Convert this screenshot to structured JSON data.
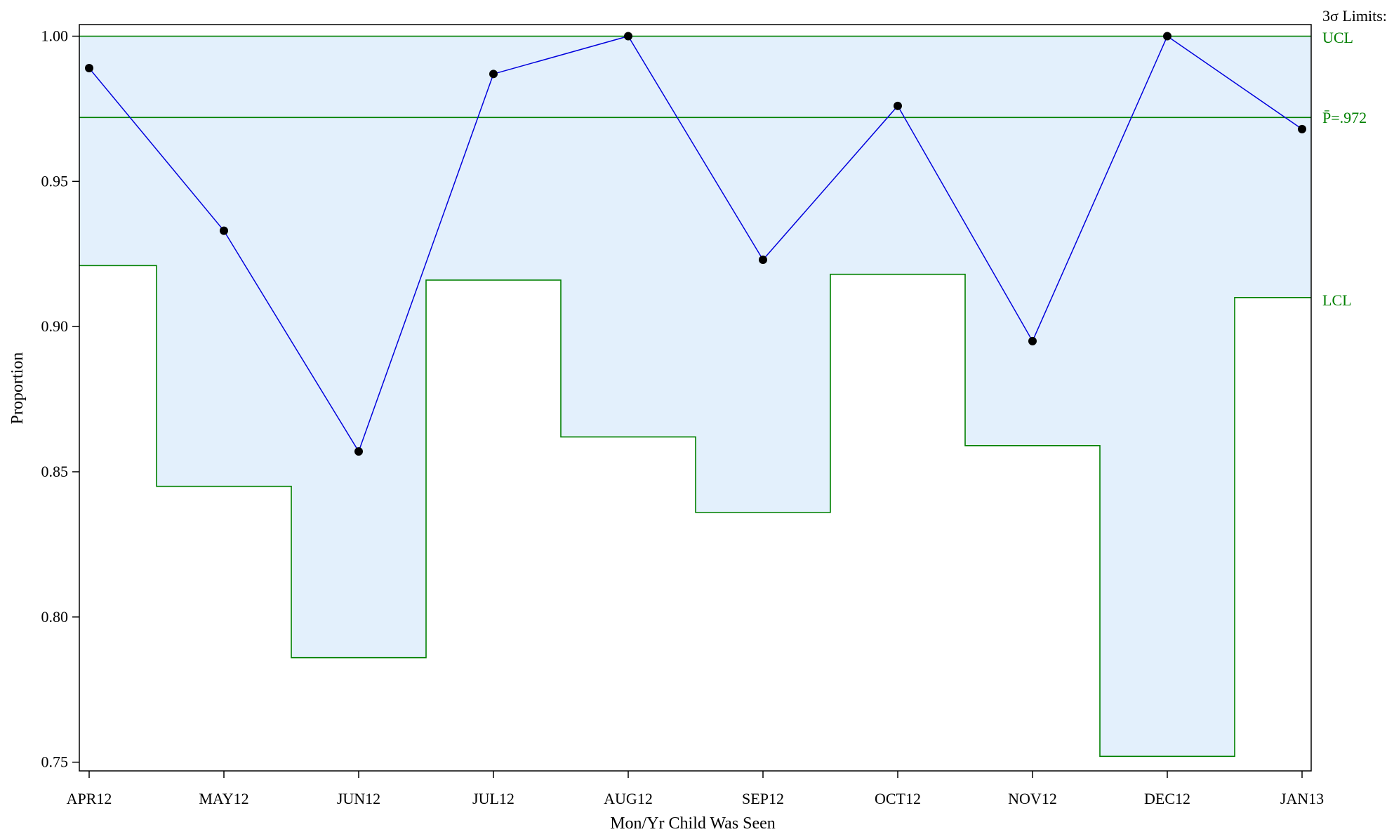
{
  "chart_data": {
    "type": "line",
    "chart_kind": "p-chart",
    "xlabel": "Mon/Yr Child Was Seen",
    "ylabel": "Proportion",
    "categories": [
      "APR12",
      "MAY12",
      "JUN12",
      "JUL12",
      "AUG12",
      "SEP12",
      "OCT12",
      "NOV12",
      "DEC12",
      "JAN13"
    ],
    "series": [
      {
        "values": [
          0.989,
          0.933,
          0.857,
          0.987,
          1.0,
          0.923,
          0.976,
          0.895,
          1.0,
          0.968
        ]
      }
    ],
    "center_line": 0.972,
    "ucl": [
      1.0,
      1.0,
      1.0,
      1.0,
      1.0,
      1.0,
      1.0,
      1.0,
      1.0,
      1.0
    ],
    "lcl": [
      0.921,
      0.845,
      0.786,
      0.916,
      0.862,
      0.836,
      0.918,
      0.859,
      0.752,
      0.91
    ],
    "ylim": [
      0.747,
      1.004
    ],
    "yticks": [
      "0.75",
      "0.80",
      "0.85",
      "0.90",
      "0.95",
      "1.00"
    ],
    "limits_label": "3σ Limits:",
    "ucl_label": "UCL",
    "center_label": "P̄=.972",
    "lcl_label": "LCL",
    "grid": false,
    "legend": "right",
    "colors": {
      "series_line": "#0000dd",
      "markers": "#000000",
      "limit_lines": "#008000",
      "band_fill": "#e3f0fc",
      "axes": "#000000"
    }
  }
}
